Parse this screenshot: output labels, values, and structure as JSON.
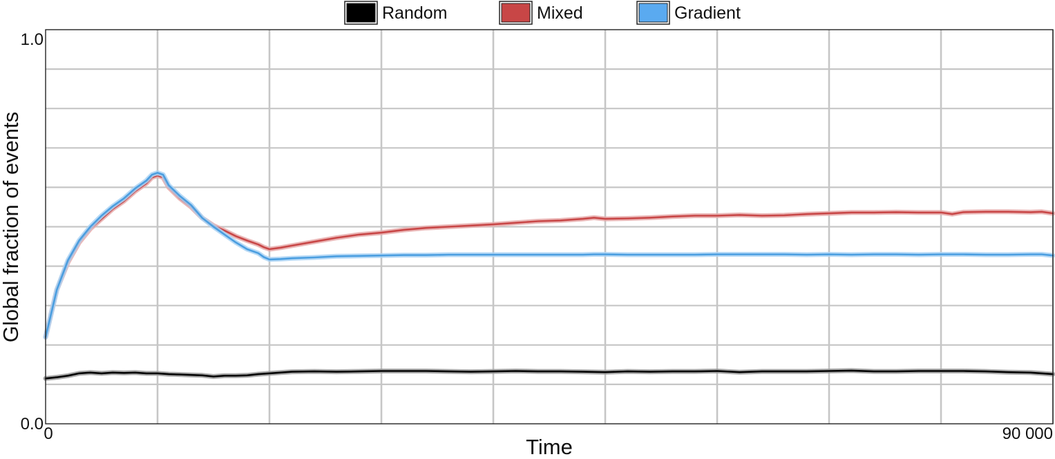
{
  "chart_data": {
    "type": "line",
    "title": "",
    "xlabel": "Time",
    "ylabel": "Global fraction of events",
    "xlim": [
      0,
      90000
    ],
    "ylim": [
      0.0,
      1.0
    ],
    "x_tick_labels": [
      {
        "value": 0,
        "label": "0"
      },
      {
        "value": 90000,
        "label": "90 000"
      }
    ],
    "y_tick_labels": [
      {
        "value": 0.0,
        "label": "0.0"
      },
      {
        "value": 1.0,
        "label": "1.0"
      }
    ],
    "grid": true,
    "x_grid_values": [
      10000,
      20000,
      30000,
      40000,
      50000,
      60000,
      70000,
      80000,
      90000
    ],
    "y_grid_values": [
      0.1,
      0.2,
      0.3,
      0.4,
      0.5,
      0.6,
      0.7,
      0.8,
      0.9
    ],
    "legend_position": "top",
    "series": [
      {
        "name": "Random",
        "color": "#000000",
        "band_color": "#9a9a9a",
        "points": [
          [
            0,
            0.115
          ],
          [
            1000,
            0.118
          ],
          [
            2000,
            0.122
          ],
          [
            3000,
            0.128
          ],
          [
            4000,
            0.13
          ],
          [
            5000,
            0.128
          ],
          [
            6000,
            0.13
          ],
          [
            7000,
            0.129
          ],
          [
            8000,
            0.13
          ],
          [
            9000,
            0.128
          ],
          [
            10000,
            0.128
          ],
          [
            11000,
            0.126
          ],
          [
            12000,
            0.125
          ],
          [
            13000,
            0.124
          ],
          [
            14000,
            0.123
          ],
          [
            15000,
            0.12
          ],
          [
            16000,
            0.122
          ],
          [
            17000,
            0.122
          ],
          [
            18000,
            0.123
          ],
          [
            19000,
            0.126
          ],
          [
            20000,
            0.128
          ],
          [
            22000,
            0.132
          ],
          [
            24000,
            0.133
          ],
          [
            26000,
            0.132
          ],
          [
            28000,
            0.133
          ],
          [
            30000,
            0.134
          ],
          [
            32000,
            0.134
          ],
          [
            34000,
            0.134
          ],
          [
            36000,
            0.133
          ],
          [
            38000,
            0.132
          ],
          [
            40000,
            0.133
          ],
          [
            42000,
            0.134
          ],
          [
            44000,
            0.133
          ],
          [
            46000,
            0.133
          ],
          [
            48000,
            0.132
          ],
          [
            50000,
            0.131
          ],
          [
            52000,
            0.133
          ],
          [
            54000,
            0.132
          ],
          [
            56000,
            0.133
          ],
          [
            58000,
            0.133
          ],
          [
            60000,
            0.134
          ],
          [
            62000,
            0.131
          ],
          [
            64000,
            0.133
          ],
          [
            66000,
            0.133
          ],
          [
            68000,
            0.133
          ],
          [
            70000,
            0.134
          ],
          [
            72000,
            0.135
          ],
          [
            74000,
            0.133
          ],
          [
            76000,
            0.133
          ],
          [
            78000,
            0.134
          ],
          [
            80000,
            0.134
          ],
          [
            82000,
            0.134
          ],
          [
            84000,
            0.133
          ],
          [
            86000,
            0.131
          ],
          [
            88000,
            0.13
          ],
          [
            89000,
            0.128
          ],
          [
            90000,
            0.126
          ]
        ]
      },
      {
        "name": "Mixed",
        "color": "#c84646",
        "band_color": "#e6a9a9",
        "points": [
          [
            0,
            0.22
          ],
          [
            1000,
            0.34
          ],
          [
            2000,
            0.41
          ],
          [
            3000,
            0.46
          ],
          [
            4000,
            0.495
          ],
          [
            5000,
            0.52
          ],
          [
            6000,
            0.545
          ],
          [
            7000,
            0.565
          ],
          [
            8000,
            0.59
          ],
          [
            9000,
            0.61
          ],
          [
            9500,
            0.625
          ],
          [
            10000,
            0.63
          ],
          [
            10500,
            0.625
          ],
          [
            11000,
            0.6
          ],
          [
            12000,
            0.572
          ],
          [
            13000,
            0.55
          ],
          [
            14000,
            0.522
          ],
          [
            15000,
            0.503
          ],
          [
            16000,
            0.49
          ],
          [
            17000,
            0.476
          ],
          [
            18000,
            0.465
          ],
          [
            19000,
            0.455
          ],
          [
            19500,
            0.448
          ],
          [
            20000,
            0.443
          ],
          [
            21000,
            0.447
          ],
          [
            22000,
            0.452
          ],
          [
            24000,
            0.462
          ],
          [
            26000,
            0.472
          ],
          [
            28000,
            0.48
          ],
          [
            30000,
            0.485
          ],
          [
            32000,
            0.492
          ],
          [
            34000,
            0.497
          ],
          [
            36000,
            0.5
          ],
          [
            38000,
            0.503
          ],
          [
            40000,
            0.506
          ],
          [
            42000,
            0.51
          ],
          [
            44000,
            0.514
          ],
          [
            46000,
            0.516
          ],
          [
            48000,
            0.52
          ],
          [
            49000,
            0.523
          ],
          [
            50000,
            0.52
          ],
          [
            52000,
            0.521
          ],
          [
            54000,
            0.523
          ],
          [
            56000,
            0.526
          ],
          [
            58000,
            0.528
          ],
          [
            60000,
            0.528
          ],
          [
            62000,
            0.53
          ],
          [
            64000,
            0.528
          ],
          [
            66000,
            0.529
          ],
          [
            68000,
            0.532
          ],
          [
            70000,
            0.534
          ],
          [
            72000,
            0.536
          ],
          [
            74000,
            0.536
          ],
          [
            76000,
            0.537
          ],
          [
            78000,
            0.536
          ],
          [
            80000,
            0.536
          ],
          [
            81000,
            0.532
          ],
          [
            82000,
            0.537
          ],
          [
            84000,
            0.538
          ],
          [
            86000,
            0.538
          ],
          [
            88000,
            0.537
          ],
          [
            89000,
            0.538
          ],
          [
            90000,
            0.534
          ]
        ]
      },
      {
        "name": "Gradient",
        "color": "#4a9ee0",
        "band_color": "#a9d2f4",
        "points": [
          [
            0,
            0.22
          ],
          [
            1000,
            0.34
          ],
          [
            2000,
            0.415
          ],
          [
            3000,
            0.465
          ],
          [
            4000,
            0.5
          ],
          [
            5000,
            0.528
          ],
          [
            6000,
            0.552
          ],
          [
            7000,
            0.572
          ],
          [
            8000,
            0.597
          ],
          [
            9000,
            0.617
          ],
          [
            9500,
            0.632
          ],
          [
            10000,
            0.637
          ],
          [
            10500,
            0.632
          ],
          [
            11000,
            0.605
          ],
          [
            12000,
            0.578
          ],
          [
            13000,
            0.555
          ],
          [
            14000,
            0.522
          ],
          [
            15000,
            0.5
          ],
          [
            16000,
            0.48
          ],
          [
            17000,
            0.46
          ],
          [
            18000,
            0.443
          ],
          [
            19000,
            0.433
          ],
          [
            19500,
            0.423
          ],
          [
            20000,
            0.417
          ],
          [
            21000,
            0.418
          ],
          [
            22000,
            0.42
          ],
          [
            24000,
            0.422
          ],
          [
            26000,
            0.425
          ],
          [
            28000,
            0.426
          ],
          [
            30000,
            0.427
          ],
          [
            32000,
            0.428
          ],
          [
            34000,
            0.428
          ],
          [
            36000,
            0.429
          ],
          [
            38000,
            0.429
          ],
          [
            40000,
            0.429
          ],
          [
            42000,
            0.429
          ],
          [
            44000,
            0.429
          ],
          [
            46000,
            0.429
          ],
          [
            48000,
            0.429
          ],
          [
            49000,
            0.43
          ],
          [
            50000,
            0.43
          ],
          [
            52000,
            0.429
          ],
          [
            54000,
            0.429
          ],
          [
            56000,
            0.429
          ],
          [
            58000,
            0.429
          ],
          [
            60000,
            0.43
          ],
          [
            62000,
            0.43
          ],
          [
            64000,
            0.43
          ],
          [
            66000,
            0.43
          ],
          [
            68000,
            0.429
          ],
          [
            70000,
            0.43
          ],
          [
            72000,
            0.429
          ],
          [
            74000,
            0.43
          ],
          [
            76000,
            0.43
          ],
          [
            78000,
            0.429
          ],
          [
            80000,
            0.43
          ],
          [
            82000,
            0.43
          ],
          [
            84000,
            0.429
          ],
          [
            86000,
            0.429
          ],
          [
            88000,
            0.43
          ],
          [
            89000,
            0.43
          ],
          [
            90000,
            0.427
          ]
        ]
      }
    ]
  }
}
